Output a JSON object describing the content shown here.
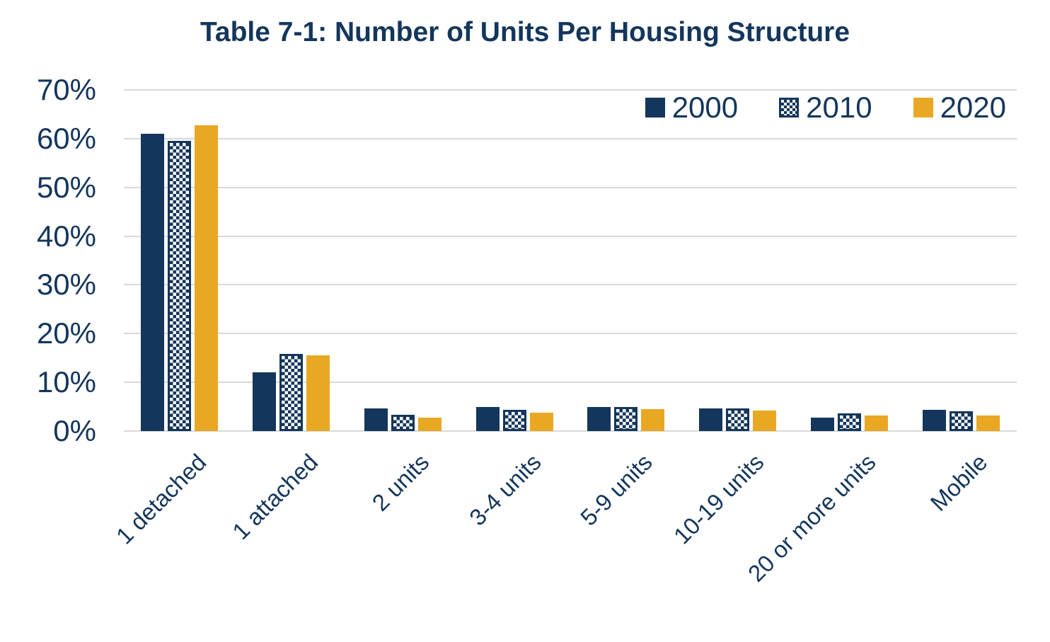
{
  "title": "Table 7-1: Number of Units Per Housing Structure",
  "colors": {
    "navy": "#14365c",
    "gold": "#e9a823",
    "gridline": "#d9d9d9",
    "background": "#ffffff"
  },
  "y_axis": {
    "tick_labels": [
      "70%",
      "60%",
      "50%",
      "40%",
      "30%",
      "20%",
      "10%",
      "0%"
    ]
  },
  "chart_data": {
    "type": "bar",
    "title": "Table 7-1: Number of Units Per Housing Structure",
    "categories": [
      "1 detached",
      "1 attached",
      "2 units",
      "3-4 units",
      "5-9 units",
      "10-19 units",
      "20 or more units",
      "Mobile"
    ],
    "series": [
      {
        "name": "2000",
        "style": "solid-navy",
        "values": [
          61.0,
          12.0,
          4.7,
          5.0,
          5.0,
          4.7,
          2.8,
          4.4
        ]
      },
      {
        "name": "2010",
        "style": "checkered",
        "values": [
          59.5,
          15.8,
          3.4,
          4.3,
          5.0,
          4.7,
          3.6,
          4.1
        ]
      },
      {
        "name": "2020",
        "style": "solid-gold",
        "values": [
          62.8,
          15.6,
          2.7,
          3.8,
          4.5,
          4.2,
          3.2,
          3.2
        ]
      }
    ],
    "xlabel": "",
    "ylabel": "",
    "ylim": [
      0,
      70
    ],
    "ytick_step": 10,
    "grid": true,
    "legend_position": "top-right"
  }
}
